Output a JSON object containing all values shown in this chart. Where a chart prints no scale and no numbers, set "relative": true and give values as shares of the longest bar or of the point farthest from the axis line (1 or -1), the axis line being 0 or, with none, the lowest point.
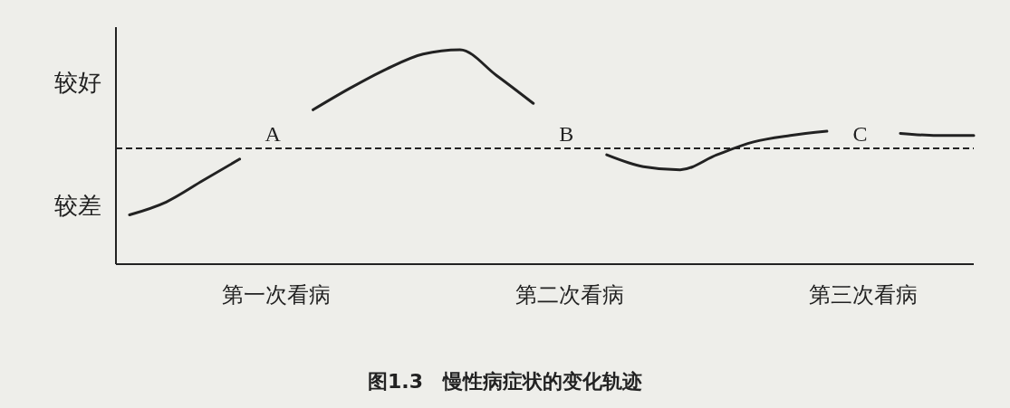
{
  "chart_data": {
    "type": "line",
    "relative": true,
    "categories": [
      null,
      null,
      null,
      null,
      "第一次看病",
      null,
      null,
      null,
      null,
      null,
      null,
      null,
      "第二次看病",
      null,
      null,
      null,
      null,
      null,
      null,
      null,
      "第三次看病",
      null,
      null,
      null
    ],
    "series": [
      {
        "color": "#222222",
        "values": [
          0.23,
          0.29,
          0.39,
          0.49,
          null,
          0.72,
          0.82,
          0.91,
          0.98,
          1,
          0.88,
          0.75,
          null,
          0.51,
          0.455,
          0.44,
          0.51,
          0.57,
          0.6,
          0.62,
          null,
          0.61,
          0.6,
          0.6
        ]
      }
    ],
    "ref_lines": [
      {
        "axis": "y",
        "value": 0.54,
        "color": "#222222",
        "line_style": "dashed"
      }
    ],
    "annotations": [
      "较好",
      "较差",
      "A",
      "B",
      "C",
      "图1.3　慢性病症状的变化轨迹"
    ],
    "line_style": "solid"
  }
}
